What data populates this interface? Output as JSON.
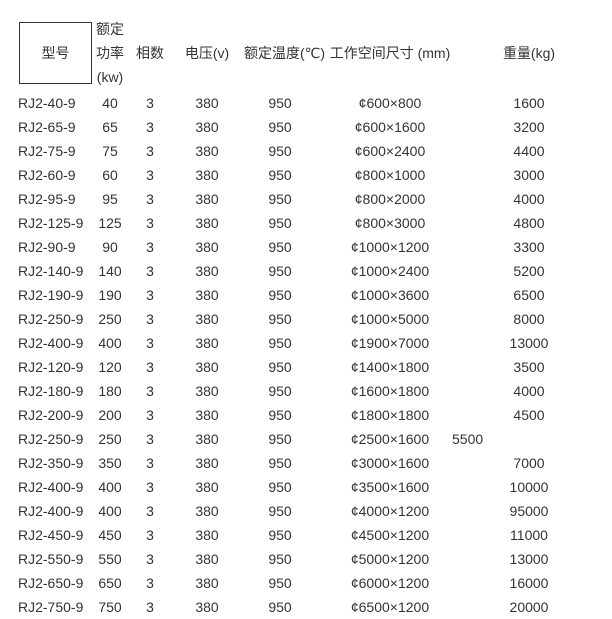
{
  "colors": {
    "text": "#333333",
    "border": "#333333",
    "background": "#ffffff"
  },
  "table": {
    "headers": {
      "model": "型号",
      "power_lines": [
        "额定",
        "功率",
        "(kw)"
      ],
      "phase": "相数",
      "voltage": "电压(v)",
      "temperature": "额定温度(℃)",
      "dimensions": "工作空间尺寸 (mm)",
      "weight": "重量(kg)"
    },
    "rows": [
      {
        "model": "RJ2-40-9",
        "power": "40",
        "phase": "3",
        "voltage": "380",
        "temperature": "950",
        "dimensions": "¢600×800",
        "weight": "1600"
      },
      {
        "model": "RJ2-65-9",
        "power": "65",
        "phase": "3",
        "voltage": "380",
        "temperature": "950",
        "dimensions": "¢600×1600",
        "weight": "3200"
      },
      {
        "model": "RJ2-75-9",
        "power": "75",
        "phase": "3",
        "voltage": "380",
        "temperature": "950",
        "dimensions": "¢600×2400",
        "weight": "4400"
      },
      {
        "model": "RJ2-60-9",
        "power": "60",
        "phase": "3",
        "voltage": "380",
        "temperature": "950",
        "dimensions": "¢800×1000",
        "weight": "3000"
      },
      {
        "model": "RJ2-95-9",
        "power": "95",
        "phase": "3",
        "voltage": "380",
        "temperature": "950",
        "dimensions": "¢800×2000",
        "weight": "4000"
      },
      {
        "model": "RJ2-125-9",
        "power": "125",
        "phase": "3",
        "voltage": "380",
        "temperature": "950",
        "dimensions": "¢800×3000",
        "weight": "4800"
      },
      {
        "model": "RJ2-90-9",
        "power": "90",
        "phase": "3",
        "voltage": "380",
        "temperature": "950",
        "dimensions": "¢1000×1200",
        "weight": "3300"
      },
      {
        "model": "RJ2-140-9",
        "power": "140",
        "phase": "3",
        "voltage": "380",
        "temperature": "950",
        "dimensions": "¢1000×2400",
        "weight": "5200"
      },
      {
        "model": "RJ2-190-9",
        "power": "190",
        "phase": "3",
        "voltage": "380",
        "temperature": "950",
        "dimensions": "¢1000×3600",
        "weight": "6500"
      },
      {
        "model": "RJ2-250-9",
        "power": "250",
        "phase": "3",
        "voltage": "380",
        "temperature": "950",
        "dimensions": "¢1000×5000",
        "weight": "8000"
      },
      {
        "model": "RJ2-400-9",
        "power": "400",
        "phase": "3",
        "voltage": "380",
        "temperature": "950",
        "dimensions": "¢1900×7000",
        "weight": "13000"
      },
      {
        "model": "RJ2-120-9",
        "power": "120",
        "phase": "3",
        "voltage": "380",
        "temperature": "950",
        "dimensions": "¢1400×1800",
        "weight": "3500"
      },
      {
        "model": "RJ2-180-9",
        "power": "180",
        "phase": "3",
        "voltage": "380",
        "temperature": "950",
        "dimensions": "¢1600×1800",
        "weight": "4000"
      },
      {
        "model": "RJ2-200-9",
        "power": "200",
        "phase": "3",
        "voltage": "380",
        "temperature": "950",
        "dimensions": "¢1800×1800",
        "weight": "4500"
      },
      {
        "model": "RJ2-250-9",
        "power": "250",
        "phase": "3",
        "voltage": "380",
        "temperature": "950",
        "dimensions": "¢2500×1600",
        "dimensions_extra": "5500",
        "weight": ""
      },
      {
        "model": "RJ2-350-9",
        "power": "350",
        "phase": "3",
        "voltage": "380",
        "temperature": "950",
        "dimensions": "¢3000×1600",
        "weight": "7000"
      },
      {
        "model": "RJ2-400-9",
        "power": "400",
        "phase": "3",
        "voltage": "380",
        "temperature": "950",
        "dimensions": "¢3500×1600",
        "weight": "10000"
      },
      {
        "model": "RJ2-400-9",
        "power": "400",
        "phase": "3",
        "voltage": "380",
        "temperature": "950",
        "dimensions": "¢4000×1200",
        "weight": "95000"
      },
      {
        "model": "RJ2-450-9",
        "power": "450",
        "phase": "3",
        "voltage": "380",
        "temperature": "950",
        "dimensions": "¢4500×1200",
        "weight": "11000"
      },
      {
        "model": "RJ2-550-9",
        "power": "550",
        "phase": "3",
        "voltage": "380",
        "temperature": "950",
        "dimensions": "¢5000×1200",
        "weight": "13000"
      },
      {
        "model": "RJ2-650-9",
        "power": "650",
        "phase": "3",
        "voltage": "380",
        "temperature": "950",
        "dimensions": "¢6000×1200",
        "weight": "16000"
      },
      {
        "model": "RJ2-750-9",
        "power": "750",
        "phase": "3",
        "voltage": "380",
        "temperature": "950",
        "dimensions": "¢6500×1200",
        "weight": "20000"
      }
    ]
  }
}
